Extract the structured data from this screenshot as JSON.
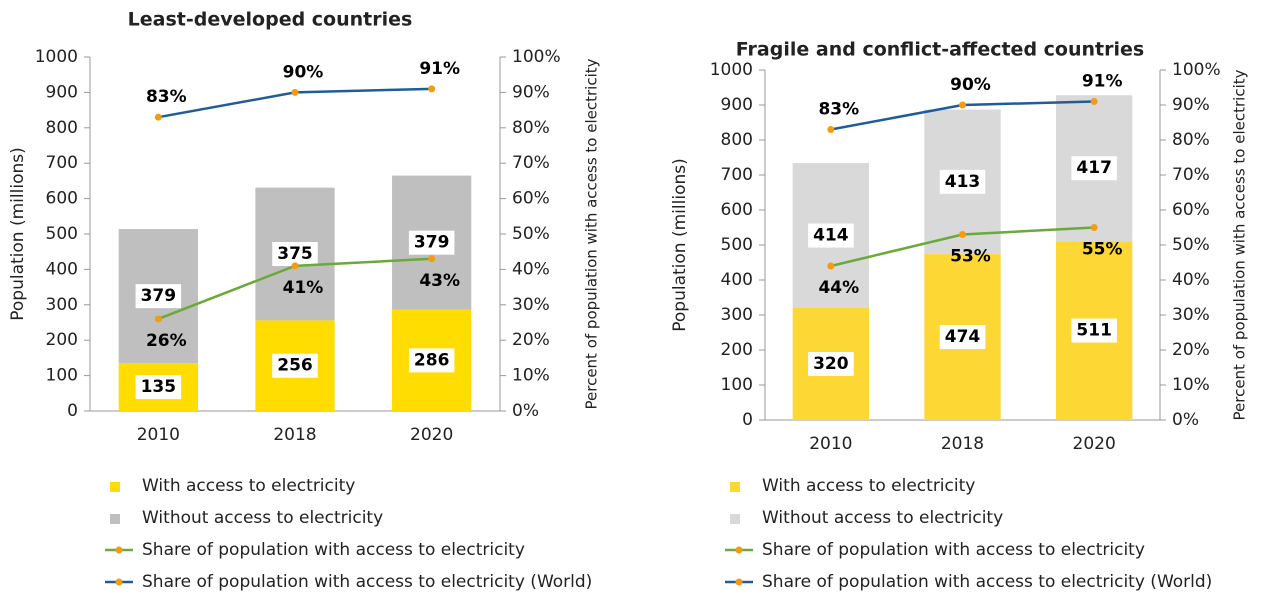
{
  "chart_data": [
    {
      "type": "bar",
      "title": "Least-developed countries",
      "categories": [
        "2010",
        "2018",
        "2020"
      ],
      "ylabel": "Population (millions)",
      "y2label": "Percent of population with access to electricity",
      "ylim": [
        0,
        1000
      ],
      "yticks": [
        0,
        100,
        200,
        300,
        400,
        500,
        600,
        700,
        800,
        900,
        1000
      ],
      "y2lim": [
        0,
        100
      ],
      "y2ticks": [
        {
          "value": 0,
          "label": "0%"
        },
        {
          "value": 10,
          "label": "10%"
        },
        {
          "value": 20,
          "label": "20%"
        },
        {
          "value": 30,
          "label": "30%"
        },
        {
          "value": 40,
          "label": "40%"
        },
        {
          "value": 50,
          "label": "50%"
        },
        {
          "value": 60,
          "label": "60%"
        },
        {
          "value": 70,
          "label": "70%"
        },
        {
          "value": 80,
          "label": "80%"
        },
        {
          "value": 90,
          "label": "90%"
        },
        {
          "value": 100,
          "label": "100%"
        }
      ],
      "stacked": true,
      "series": [
        {
          "name": "With access to electricity",
          "color": "#ffdd00",
          "values": [
            135,
            256,
            286
          ]
        },
        {
          "name": "Without access to electricity",
          "color": "#bfbfbf",
          "values": [
            379,
            375,
            379
          ]
        },
        {
          "name": "Share of population with access to electricity",
          "color": "#6aa93a",
          "axis": "y2",
          "values": [
            26,
            41,
            43
          ],
          "value_labels": [
            "26%",
            "41%",
            "43%"
          ]
        },
        {
          "name": "Share of population with access to electricity (World)",
          "color": "#1f5c99",
          "axis": "y2",
          "values": [
            83,
            90,
            91
          ],
          "value_labels": [
            "83%",
            "90%",
            "91%"
          ]
        }
      ]
    },
    {
      "type": "bar",
      "title": "Fragile and conflict-affected countries",
      "categories": [
        "2010",
        "2018",
        "2020"
      ],
      "ylabel": "Population (millions)",
      "y2label": "Percent of population with access to electricity",
      "ylim": [
        0,
        1000
      ],
      "yticks": [
        0,
        100,
        200,
        300,
        400,
        500,
        600,
        700,
        800,
        900,
        1000
      ],
      "y2lim": [
        0,
        100
      ],
      "y2ticks": [
        {
          "value": 0,
          "label": "0%"
        },
        {
          "value": 10,
          "label": "10%"
        },
        {
          "value": 20,
          "label": "20%"
        },
        {
          "value": 30,
          "label": "30%"
        },
        {
          "value": 40,
          "label": "40%"
        },
        {
          "value": 50,
          "label": "50%"
        },
        {
          "value": 60,
          "label": "60%"
        },
        {
          "value": 70,
          "label": "70%"
        },
        {
          "value": 80,
          "label": "80%"
        },
        {
          "value": 90,
          "label": "90%"
        },
        {
          "value": 100,
          "label": "100%"
        }
      ],
      "stacked": true,
      "series": [
        {
          "name": "With access to electricity",
          "color": "#fdd835",
          "values": [
            320,
            474,
            511
          ]
        },
        {
          "name": "Without access to electricity",
          "color": "#d9d9d9",
          "values": [
            414,
            413,
            417
          ]
        },
        {
          "name": "Share of population with access to electricity",
          "color": "#6aa93a",
          "axis": "y2",
          "values": [
            44,
            53,
            55
          ],
          "value_labels": [
            "44%",
            "53%",
            "55%"
          ]
        },
        {
          "name": "Share of population with access to electricity (World)",
          "color": "#1f5c99",
          "axis": "y2",
          "values": [
            83,
            90,
            91
          ],
          "value_labels": [
            "83%",
            "90%",
            "91%"
          ]
        }
      ]
    }
  ]
}
